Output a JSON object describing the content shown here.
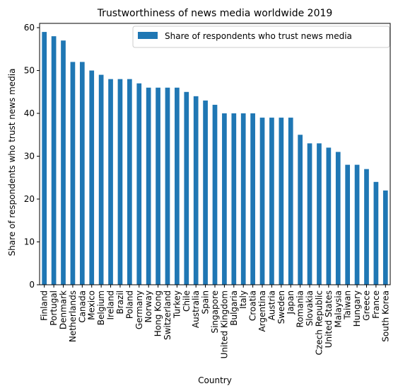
{
  "chart_data": {
    "type": "bar",
    "title": "Trustworthiness of news media worldwide 2019",
    "xlabel": "Country",
    "ylabel": "Share of respondents who trust news media",
    "ylim": [
      0,
      61
    ],
    "yticks": [
      0,
      10,
      20,
      30,
      40,
      50,
      60
    ],
    "grid": false,
    "legend_position": "top-right",
    "color": "#1f77b4",
    "categories": [
      "Finland",
      "Portugal",
      "Denmark",
      "Netherlands",
      "Canada",
      "Mexico",
      "Belgium",
      "Ireland",
      "Brazil",
      "Poland",
      "Germany",
      "Norway",
      "Hong Kong",
      "Switzerland",
      "Turkey",
      "Chile",
      "Australia",
      "Spain",
      "Singapore",
      "United Kingdom",
      "Bulgaria",
      "Italy",
      "Croatia",
      "Argentina",
      "Austria",
      "Sweden",
      "Japan",
      "Romania",
      "Slovakia",
      "Czech Republic",
      "United States",
      "Malaysia",
      "Taiwan",
      "Hungary",
      "Greece",
      "France",
      "South Korea"
    ],
    "series": [
      {
        "name": "Share of respondents who trust news media",
        "values": [
          59,
          58,
          57,
          52,
          52,
          50,
          49,
          48,
          48,
          48,
          47,
          46,
          46,
          46,
          46,
          45,
          44,
          43,
          42,
          40,
          40,
          40,
          40,
          39,
          39,
          39,
          39,
          35,
          33,
          33,
          32,
          31,
          28,
          28,
          27,
          24,
          22
        ]
      }
    ]
  }
}
